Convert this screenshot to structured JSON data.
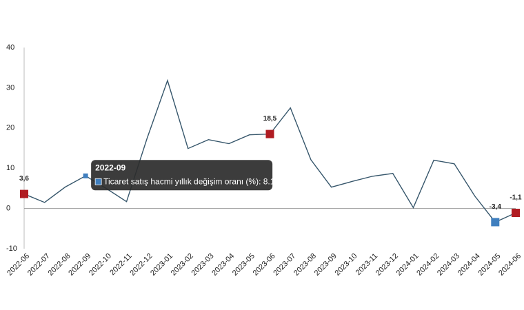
{
  "chart_data": {
    "type": "line",
    "categories": [
      "2022-06",
      "2022-07",
      "2022-08",
      "2022-09",
      "2022-10",
      "2022-11",
      "2022-12",
      "2023-01",
      "2023-02",
      "2023-03",
      "2023-04",
      "2023-05",
      "2023-06",
      "2023-07",
      "2023-08",
      "2023-09",
      "2023-10",
      "2023-11",
      "2023-12",
      "2024-01",
      "2024-02",
      "2024-03",
      "2024-04",
      "2024-05",
      "2024-06"
    ],
    "series": [
      {
        "name": "Ticaret satış hacmi yıllık değişim oranı (%)",
        "color": "#36566b",
        "values": [
          3.6,
          1.5,
          5.3,
          8.1,
          5.0,
          1.7,
          17.4,
          31.8,
          14.9,
          17.1,
          16.1,
          18.3,
          18.5,
          25.0,
          12.1,
          5.3,
          6.7,
          8.0,
          8.7,
          0.2,
          12.0,
          11.1,
          3.1,
          -3.4,
          -1.1
        ],
        "value_labels": [
          "3,6",
          null,
          null,
          null,
          null,
          null,
          null,
          null,
          null,
          null,
          null,
          null,
          "18,5",
          null,
          null,
          null,
          null,
          null,
          null,
          null,
          null,
          null,
          null,
          "-3,4",
          "-1,1"
        ]
      }
    ],
    "ylim": [
      -10,
      40
    ],
    "yticks": [
      -10,
      0,
      10,
      20,
      30,
      40
    ],
    "marker_colors": {
      "high": "#b01c22",
      "low": "#3f7fbf"
    },
    "tooltip": {
      "x": "2022-09"
    }
  }
}
